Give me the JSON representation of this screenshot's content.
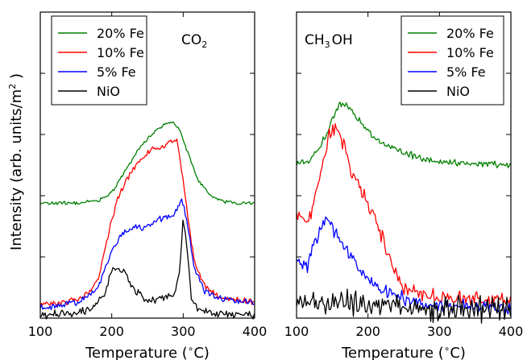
{
  "figure": {
    "ylabel": "Intensity (arb. units/m",
    "ylabel_sup": "2",
    "ylabel_tail": " )"
  },
  "chart_data": [
    {
      "type": "line",
      "panel_label": "CO",
      "panel_label_sub": "2",
      "xlabel": "Temperature (",
      "xlabel_sup": "∘",
      "xlabel_tail": "C)",
      "xlim": [
        100,
        400
      ],
      "ylim": [
        0,
        1
      ],
      "xticks": [
        100,
        200,
        300,
        400
      ],
      "y_ticklabels_shown": false,
      "grid": false,
      "legend": "top-left",
      "series": [
        {
          "name": "20% Fe",
          "color": "#008000",
          "x": [
            100,
            150,
            180,
            200,
            220,
            240,
            260,
            275,
            285,
            295,
            305,
            320,
            340,
            360,
            380,
            400
          ],
          "values": [
            0.375,
            0.376,
            0.383,
            0.41,
            0.485,
            0.56,
            0.61,
            0.635,
            0.64,
            0.62,
            0.55,
            0.455,
            0.395,
            0.38,
            0.376,
            0.375
          ]
        },
        {
          "name": "10% Fe",
          "color": "#ff0000",
          "x": [
            100,
            130,
            160,
            180,
            200,
            210,
            225,
            240,
            255,
            270,
            285,
            292,
            300,
            315,
            330,
            350,
            370,
            400
          ],
          "values": [
            0.045,
            0.048,
            0.07,
            0.12,
            0.32,
            0.4,
            0.47,
            0.52,
            0.55,
            0.56,
            0.575,
            0.58,
            0.45,
            0.19,
            0.105,
            0.07,
            0.06,
            0.055
          ]
        },
        {
          "name": "5% Fe",
          "color": "#0000ff",
          "x": [
            100,
            130,
            160,
            180,
            200,
            215,
            230,
            245,
            260,
            275,
            290,
            298,
            305,
            315,
            330,
            350,
            370,
            400
          ],
          "values": [
            0.035,
            0.04,
            0.06,
            0.1,
            0.22,
            0.28,
            0.3,
            0.295,
            0.315,
            0.33,
            0.35,
            0.39,
            0.32,
            0.17,
            0.09,
            0.065,
            0.055,
            0.05
          ]
        },
        {
          "name": "NiO",
          "color": "#000000",
          "x": [
            100,
            140,
            170,
            190,
            200,
            210,
            220,
            235,
            250,
            265,
            280,
            290,
            295,
            300,
            305,
            312,
            325,
            350,
            400
          ],
          "values": [
            0.01,
            0.015,
            0.03,
            0.08,
            0.155,
            0.165,
            0.14,
            0.08,
            0.06,
            0.065,
            0.07,
            0.09,
            0.15,
            0.33,
            0.23,
            0.055,
            0.025,
            0.015,
            0.01
          ]
        }
      ]
    },
    {
      "type": "line",
      "panel_label": "CH",
      "panel_label_sub": "3",
      "panel_label_tail": "OH",
      "xlabel": "Temperature (",
      "xlabel_sup": "∘",
      "xlabel_tail": "C)",
      "xlim": [
        100,
        400
      ],
      "ylim": [
        0,
        1
      ],
      "xticks": [
        100,
        200,
        300,
        400
      ],
      "y_ticklabels_shown": false,
      "grid": false,
      "legend": "top-right",
      "series": [
        {
          "name": "20% Fe",
          "color": "#008000",
          "x": [
            100,
            120,
            140,
            150,
            160,
            170,
            180,
            200,
            220,
            250,
            280,
            300,
            350,
            400
          ],
          "values": [
            0.5,
            0.52,
            0.59,
            0.65,
            0.7,
            0.695,
            0.67,
            0.61,
            0.57,
            0.54,
            0.52,
            0.51,
            0.505,
            0.5
          ]
        },
        {
          "name": "10% Fe",
          "color": "#ff0000",
          "x": [
            100,
            115,
            130,
            145,
            155,
            165,
            175,
            190,
            210,
            230,
            250,
            270,
            300,
            350,
            400
          ],
          "values": [
            0.35,
            0.3,
            0.42,
            0.59,
            0.63,
            0.57,
            0.49,
            0.42,
            0.32,
            0.2,
            0.1,
            0.08,
            0.07,
            0.065,
            0.06
          ]
        },
        {
          "name": "5% Fe",
          "color": "#0000ff",
          "x": [
            100,
            115,
            130,
            140,
            150,
            160,
            175,
            195,
            215,
            240,
            270,
            300,
            350,
            400
          ],
          "values": [
            0.2,
            0.17,
            0.27,
            0.33,
            0.3,
            0.26,
            0.2,
            0.14,
            0.1,
            0.07,
            0.05,
            0.04,
            0.035,
            0.035
          ]
        },
        {
          "name": "NiO",
          "color": "#000000",
          "x": [
            100,
            150,
            200,
            250,
            300,
            350,
            400
          ],
          "values": [
            0.06,
            0.055,
            0.045,
            0.035,
            0.03,
            0.03,
            0.03
          ]
        }
      ]
    }
  ]
}
